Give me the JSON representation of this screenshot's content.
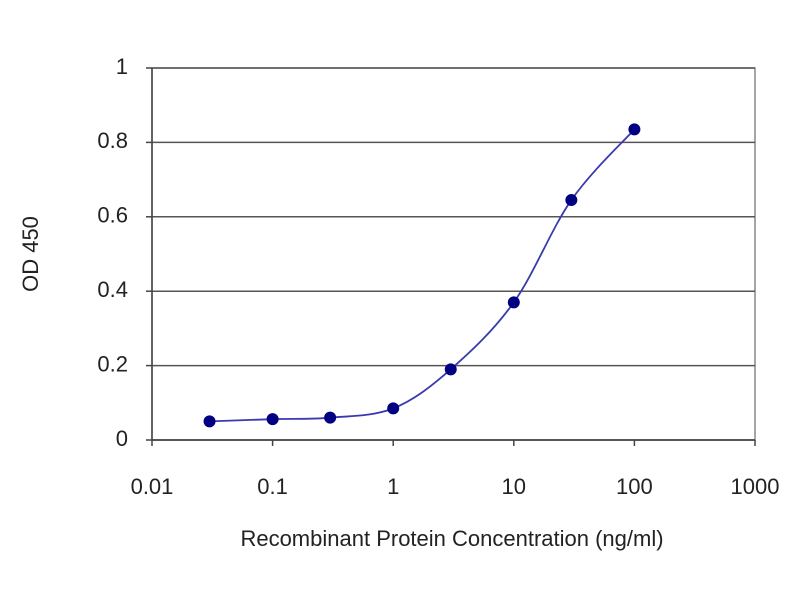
{
  "chart_data": {
    "type": "line",
    "x_label": "Recombinant Protein Concentration (ng/ml)",
    "y_label": "OD 450",
    "x": [
      0.03,
      0.1,
      0.3,
      1,
      3,
      10,
      30,
      100
    ],
    "series": [
      {
        "color": "#000080",
        "values": [
          0.05,
          0.056,
          0.06,
          0.085,
          0.19,
          0.37,
          0.645,
          0.835
        ]
      }
    ],
    "xscale": "log",
    "xlim": [
      0.01,
      1000
    ],
    "xticks": [
      0.01,
      0.1,
      1,
      10,
      100,
      1000
    ],
    "ylim": [
      0,
      1
    ],
    "yticks": [
      0,
      0.2,
      0.4,
      0.6,
      0.8,
      1
    ],
    "grid": true
  }
}
